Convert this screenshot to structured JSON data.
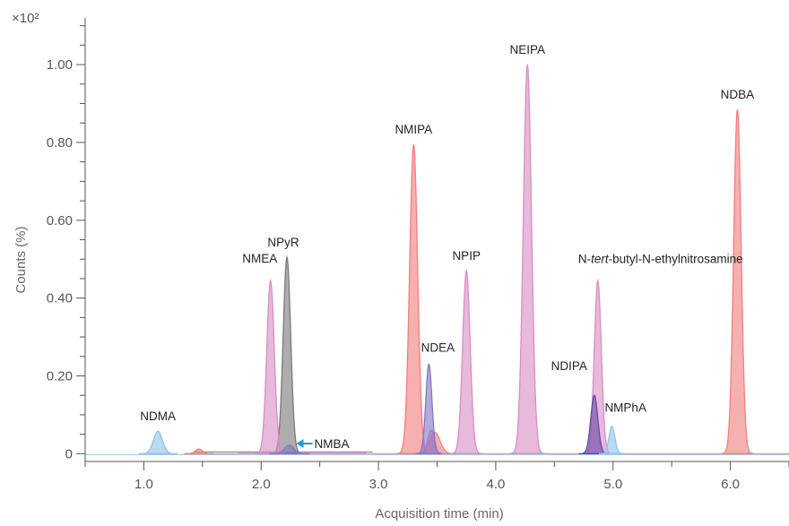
{
  "chart_data": {
    "type": "area",
    "title": "",
    "multiplier_label": "×10²",
    "xlabel": "Acquisition time (min)",
    "ylabel": "Counts (%)",
    "xlim": [
      0.5,
      6.5
    ],
    "ylim": [
      -0.02,
      1.12
    ],
    "x_ticks": [
      {
        "value": 1.0,
        "label": "1.0"
      },
      {
        "value": 2.0,
        "label": "2.0"
      },
      {
        "value": 3.0,
        "label": "3.0"
      },
      {
        "value": 4.0,
        "label": "4.0"
      },
      {
        "value": 5.0,
        "label": "5.0"
      },
      {
        "value": 6.0,
        "label": "6.0"
      }
    ],
    "y_ticks": [
      {
        "value": 0,
        "label": "0"
      },
      {
        "value": 0.2,
        "label": "0.20"
      },
      {
        "value": 0.4,
        "label": "0.40"
      },
      {
        "value": 0.6,
        "label": "0.60"
      },
      {
        "value": 0.8,
        "label": "0.80"
      },
      {
        "value": 1.0,
        "label": "1.00"
      }
    ],
    "grid": false,
    "colors": {
      "blue": "#8fc3ea",
      "pink": "#d98ec4",
      "red": "#f08080",
      "gray": "#7a7a7a",
      "purple": "#8478c4",
      "darkpurple": "#6a4aa8",
      "arrow": "#1f9bd7"
    },
    "peaks": [
      {
        "name": "NDMA",
        "rt": 1.12,
        "height": 0.058,
        "width": 0.038,
        "color": "blue"
      },
      {
        "name": "NMEA",
        "rt": 2.08,
        "height": 0.445,
        "width": 0.032,
        "color": "pink"
      },
      {
        "name": "NPyR",
        "rt": 2.22,
        "height": 0.505,
        "width": 0.032,
        "color": "gray"
      },
      {
        "name": "NMBA",
        "rt": 2.24,
        "height": 0.022,
        "width": 0.04,
        "color": "purple"
      },
      {
        "name": "NMIPA",
        "rt": 3.3,
        "height": 0.795,
        "width": 0.034,
        "color": "red"
      },
      {
        "name": "NDEA",
        "rt": 3.43,
        "height": 0.23,
        "width": 0.026,
        "color": "purple"
      },
      {
        "name": "NPIP",
        "rt": 3.75,
        "height": 0.47,
        "width": 0.032,
        "color": "pink"
      },
      {
        "name": "NEIPA",
        "rt": 4.27,
        "height": 1.0,
        "width": 0.035,
        "color": "pink"
      },
      {
        "name": "N-tert-butyl-N-ethylnitrosamine",
        "rt": 4.87,
        "height": 0.445,
        "width": 0.03,
        "color": "pink"
      },
      {
        "name": "NDIPA",
        "rt": 4.84,
        "height": 0.15,
        "width": 0.03,
        "color": "darkpurple"
      },
      {
        "name": "NMPhA",
        "rt": 4.99,
        "height": 0.07,
        "width": 0.025,
        "color": "blue"
      },
      {
        "name": "NDBA",
        "rt": 6.06,
        "height": 0.885,
        "width": 0.032,
        "color": "red"
      }
    ],
    "minor_peaks": [
      {
        "rt": 3.48,
        "height": 0.055,
        "width": 0.045,
        "color": "red"
      },
      {
        "rt": 3.45,
        "height": 0.06,
        "width": 0.03,
        "color": "pink"
      },
      {
        "rt": 1.47,
        "height": 0.012,
        "width": 0.03,
        "color": "red"
      }
    ],
    "annotations": [
      {
        "text_before": "N-",
        "text_italic": "tert",
        "text_after": "-butyl-N-ethylnitrosamine",
        "for": "N-tert-butyl-N-ethylnitrosamine"
      }
    ]
  }
}
